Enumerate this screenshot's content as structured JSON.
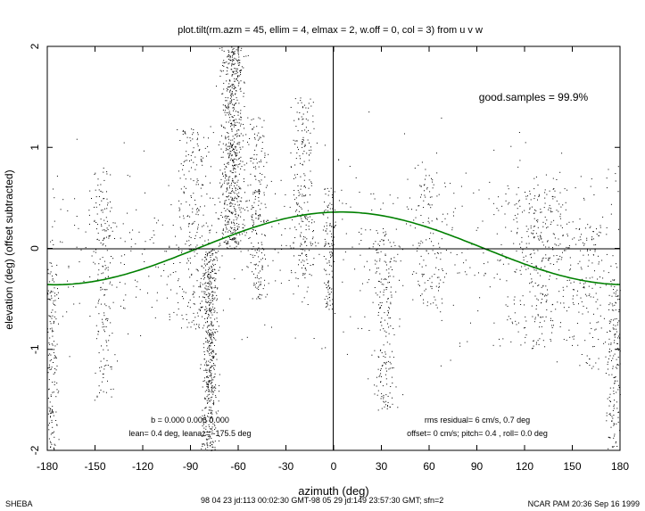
{
  "chart_data": {
    "type": "scatter",
    "title": "plot.tilt(rm.azm = 45, ellim = 4, elmax = 2, w.off = 0, col = 3) from u v w",
    "xlabel": "azimuth (deg)",
    "ylabel": "elevation (deg)  (offset subtracted)",
    "xlim": [
      -180,
      180
    ],
    "ylim": [
      -2,
      2
    ],
    "xticks": [
      -180,
      -150,
      -120,
      -90,
      -60,
      -30,
      0,
      30,
      60,
      90,
      120,
      150,
      180
    ],
    "yticks": [
      -2,
      -1,
      0,
      1,
      2
    ],
    "grid": false,
    "reference_lines": {
      "x": 0,
      "y": 0
    },
    "series": [
      {
        "type": "scatter",
        "color": "#000000",
        "clusters": [
          {
            "x_center": -178,
            "x_spread": 4,
            "y_min": -2.0,
            "y_max": -0.2,
            "density": 0.9
          },
          {
            "x_center": -145,
            "x_spread": 5,
            "y_min": -1.5,
            "y_max": 0.8,
            "density": 0.6
          },
          {
            "x_center": -88,
            "x_spread": 10,
            "y_min": -0.8,
            "y_max": 1.2,
            "density": 1.0
          },
          {
            "x_center": -78,
            "x_spread": 4,
            "y_min": -2.0,
            "y_max": 0.0,
            "density": 2.2
          },
          {
            "x_center": -64,
            "x_spread": 6,
            "y_min": 0.0,
            "y_max": 2.0,
            "density": 2.8
          },
          {
            "x_center": -48,
            "x_spread": 5,
            "y_min": -0.5,
            "y_max": 1.3,
            "density": 0.9
          },
          {
            "x_center": -20,
            "x_spread": 6,
            "y_min": -0.3,
            "y_max": 1.5,
            "density": 0.9
          },
          {
            "x_center": -3,
            "x_spread": 3,
            "y_min": -0.6,
            "y_max": 0.6,
            "density": 0.8
          },
          {
            "x_center": 32,
            "x_spread": 6,
            "y_min": -1.6,
            "y_max": 0.2,
            "density": 0.9
          },
          {
            "x_center": 60,
            "x_spread": 8,
            "y_min": -0.6,
            "y_max": 0.9,
            "density": 0.6
          },
          {
            "x_center": 130,
            "x_spread": 18,
            "y_min": -1.0,
            "y_max": 0.6,
            "density": 1.6
          },
          {
            "x_center": 160,
            "x_spread": 10,
            "y_min": -1.2,
            "y_max": 0.3,
            "density": 0.7
          },
          {
            "x_center": 176,
            "x_spread": 4,
            "y_min": -2.0,
            "y_max": -0.3,
            "density": 0.8
          }
        ]
      },
      {
        "type": "line",
        "color": "#008000",
        "function": "amplitude * cos(x - phase)",
        "amplitude": 0.36,
        "phase": 4.5
      }
    ],
    "annotations": {
      "good_samples": "good.samples = 99.9%",
      "fit_b": "b = 0.000 0.006 0.000",
      "lean": "lean= 0.4 deg, leanaz= -175.5 deg",
      "rms": "rms residual= 6 cm/s, 0.7 deg",
      "offset": "offset= 0 cm/s; pitch=  0.4 , roll=  0.0 deg"
    }
  },
  "footer": {
    "left": "SHEBA",
    "center": "98 04 23 jd:113 00:02:30 GMT-98 05 29 jd:149 23:57:30 GMT; sfn=2",
    "right": "NCAR PAM 20:36 Sep 16 1999"
  }
}
